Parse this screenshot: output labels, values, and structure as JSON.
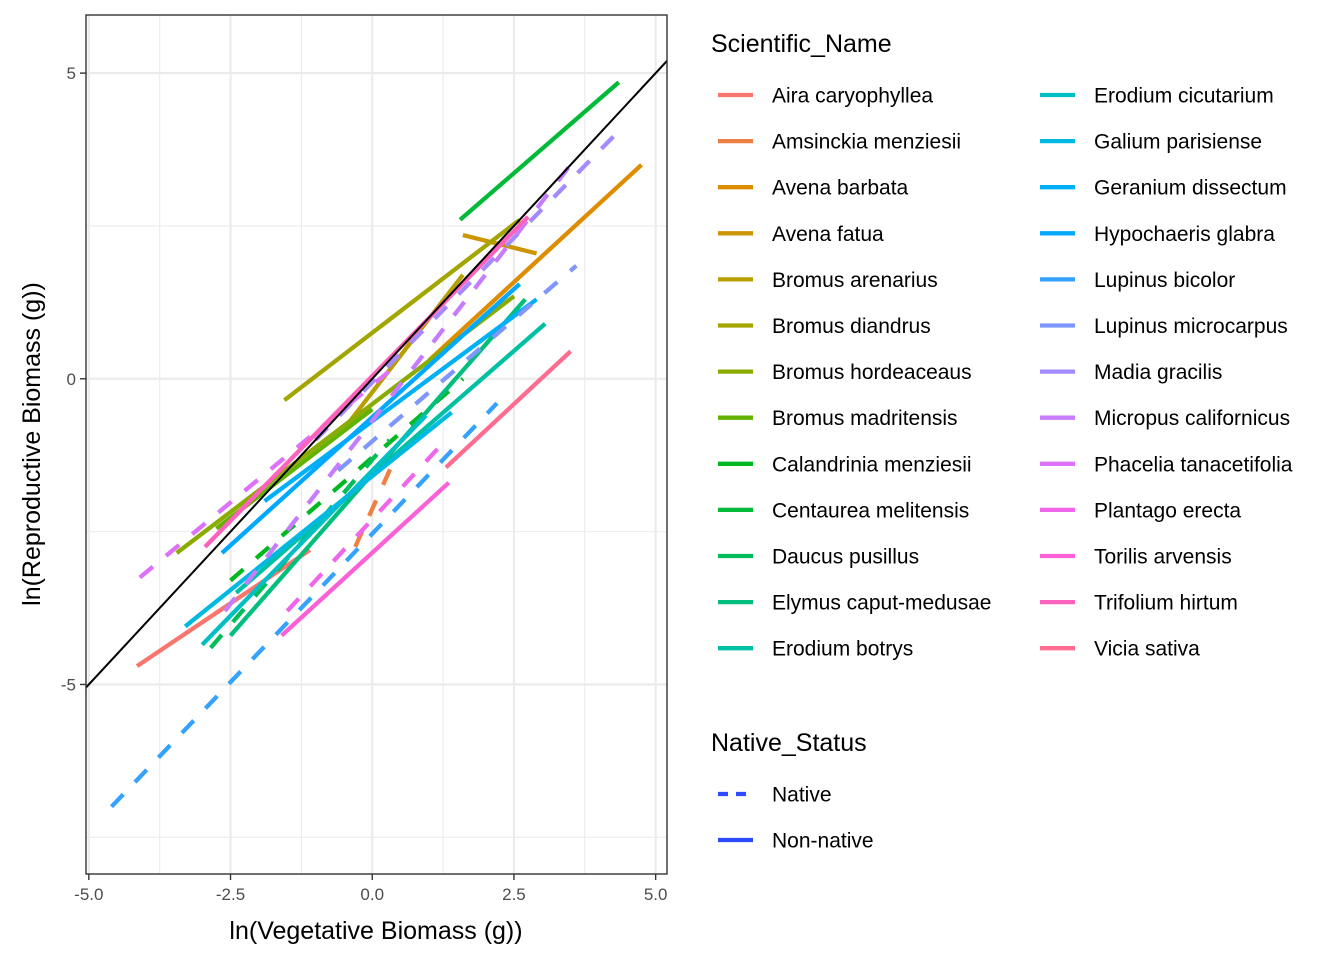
{
  "chart_data": {
    "type": "line",
    "xlabel": "ln(Vegetative Biomass (g))",
    "ylabel": "ln(Reproductive Biomass (g))",
    "xlim": [
      -5.05,
      5.2
    ],
    "ylim": [
      -8.1,
      5.95
    ],
    "x_ticks": [
      -5.0,
      -2.5,
      0.0,
      2.5,
      5.0
    ],
    "x_tick_labels": [
      "-5.0",
      "-2.5",
      "0.0",
      "2.5",
      "5.0"
    ],
    "y_ticks": [
      -5,
      0,
      5
    ],
    "y_tick_labels": [
      "-5",
      "0",
      "5"
    ],
    "grid": true,
    "reference_line": {
      "name": "1:1 line",
      "slope": 1,
      "intercept": 0,
      "color": "#000000"
    },
    "legend_species_title": "Scientific_Name",
    "legend_status_title": "Native_Status",
    "native_status": [
      {
        "name": "Native",
        "dash": "dashed"
      },
      {
        "name": "Non-native",
        "dash": "solid"
      }
    ],
    "series": [
      {
        "name": "Aira caryophyllea",
        "color": "#F8766D",
        "status": "Non-native",
        "x": [
          -4.15,
          -1.1
        ],
        "y": [
          -4.7,
          -2.8
        ]
      },
      {
        "name": "Amsinckia menziesii",
        "color": "#EE8043",
        "status": "Native",
        "x": [
          -0.3,
          0.45
        ],
        "y": [
          -2.75,
          -1.2
        ]
      },
      {
        "name": "Avena barbata",
        "color": "#DE8C00",
        "status": "Non-native",
        "x": [
          1.0,
          4.75
        ],
        "y": [
          0.3,
          3.5
        ]
      },
      {
        "name": "Avena fatua",
        "color": "#CD9600",
        "status": "Non-native",
        "x": [
          1.6,
          2.9
        ],
        "y": [
          2.35,
          2.05
        ]
      },
      {
        "name": "Bromus arenarius",
        "color": "#B79F00",
        "status": "Non-native",
        "x": [
          -0.4,
          1.6
        ],
        "y": [
          -0.7,
          1.7
        ]
      },
      {
        "name": "Bromus diandrus",
        "color": "#A3A500",
        "status": "Non-native",
        "x": [
          -1.55,
          2.6
        ],
        "y": [
          -0.35,
          2.6
        ]
      },
      {
        "name": "Bromus hordeaceaus",
        "color": "#8AAB00",
        "status": "Non-native",
        "x": [
          -3.45,
          2.5
        ],
        "y": [
          -2.85,
          1.35
        ]
      },
      {
        "name": "Bromus madritensis",
        "color": "#64B200",
        "status": "Non-native",
        "x": [
          -2.75,
          0.0
        ],
        "y": [
          -2.45,
          -0.5
        ]
      },
      {
        "name": "Calandrinia menziesii",
        "color": "#00B81F",
        "status": "Native",
        "x": [
          -2.5,
          1.6
        ],
        "y": [
          -3.3,
          0.0
        ]
      },
      {
        "name": "Centaurea melitensis",
        "color": "#00BA38",
        "status": "Non-native",
        "x": [
          1.55,
          4.35
        ],
        "y": [
          2.6,
          4.85
        ]
      },
      {
        "name": "Daucus pusillus",
        "color": "#00BC59",
        "status": "Native",
        "x": [
          -2.85,
          0.3
        ],
        "y": [
          -4.4,
          -1.0
        ]
      },
      {
        "name": "Elymus caput-medusae",
        "color": "#00BF7D",
        "status": "Non-native",
        "x": [
          -2.5,
          2.7
        ],
        "y": [
          -4.2,
          1.3
        ]
      },
      {
        "name": "Erodium botrys",
        "color": "#00C0A3",
        "status": "Non-native",
        "x": [
          -2.4,
          3.05
        ],
        "y": [
          -3.5,
          0.9
        ]
      },
      {
        "name": "Erodium cicutarium",
        "color": "#00BFC4",
        "status": "Non-native",
        "x": [
          -3.0,
          0.95
        ],
        "y": [
          -4.35,
          -0.6
        ]
      },
      {
        "name": "Galium parisiense",
        "color": "#00B9E3",
        "status": "Non-native",
        "x": [
          -3.3,
          1.4
        ],
        "y": [
          -4.05,
          -0.55
        ]
      },
      {
        "name": "Geranium dissectum",
        "color": "#00B0F6",
        "status": "Non-native",
        "x": [
          -1.9,
          2.9
        ],
        "y": [
          -2.0,
          1.3
        ]
      },
      {
        "name": "Hypochaeris glabra",
        "color": "#00A9FF",
        "status": "Non-native",
        "x": [
          -2.65,
          2.6
        ],
        "y": [
          -2.85,
          1.55
        ]
      },
      {
        "name": "Lupinus bicolor",
        "color": "#35A2FF",
        "status": "Native",
        "x": [
          -4.6,
          2.2
        ],
        "y": [
          -7.0,
          -0.4
        ]
      },
      {
        "name": "Lupinus microcarpus",
        "color": "#7F96FF",
        "status": "Native",
        "x": [
          -0.6,
          3.6
        ],
        "y": [
          -1.5,
          1.85
        ]
      },
      {
        "name": "Madia gracilis",
        "color": "#A58AFF",
        "status": "Native",
        "x": [
          -1.0,
          4.4
        ],
        "y": [
          -1.0,
          4.1
        ]
      },
      {
        "name": "Micropus californicus",
        "color": "#C77CFF",
        "status": "Native",
        "x": [
          -2.6,
          3.5
        ],
        "y": [
          -3.8,
          3.5
        ]
      },
      {
        "name": "Phacelia tanacetifolia",
        "color": "#DE71F9",
        "status": "Native",
        "x": [
          -4.1,
          0.4
        ],
        "y": [
          -3.25,
          0.2
        ]
      },
      {
        "name": "Plantago erecta",
        "color": "#F066EA",
        "status": "Native",
        "x": [
          -1.5,
          1.3
        ],
        "y": [
          -3.8,
          -1.0
        ]
      },
      {
        "name": "Torilis arvensis",
        "color": "#FB61D7",
        "status": "Non-native",
        "x": [
          -1.6,
          1.35
        ],
        "y": [
          -4.2,
          -1.7
        ]
      },
      {
        "name": "Trifolium hirtum",
        "color": "#FF62BC",
        "status": "Non-native",
        "x": [
          -2.95,
          2.75
        ],
        "y": [
          -2.75,
          2.65
        ]
      },
      {
        "name": "Vicia sativa",
        "color": "#FF6C90",
        "status": "Non-native",
        "x": [
          1.3,
          3.5
        ],
        "y": [
          -1.45,
          0.45
        ]
      }
    ]
  }
}
